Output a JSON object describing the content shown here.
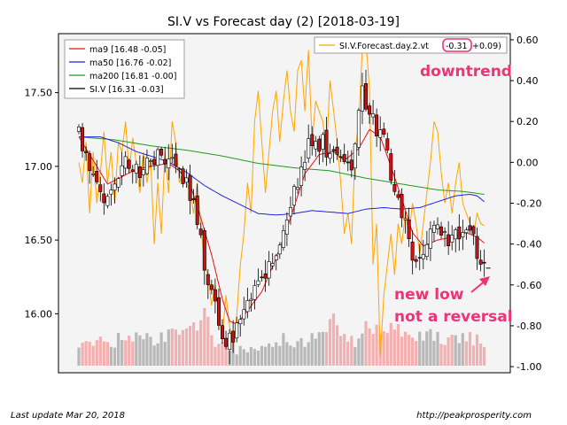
{
  "chart_data": {
    "type": "candlestick",
    "title": "SI.V vs Forecast day (2)  [2018-03-19]",
    "n": 114,
    "left_axis": {
      "ylim": [
        15.6,
        17.9
      ],
      "ticks": [
        16.0,
        16.5,
        17.0,
        17.5
      ],
      "tick_labels": [
        "16.00",
        "16.50",
        "17.00",
        "17.50"
      ]
    },
    "right_axis": {
      "ylim": [
        -1.03,
        0.63
      ],
      "ticks": [
        0.6,
        0.4,
        0.2,
        0.0,
        -0.2,
        -0.4,
        -0.6,
        -0.8,
        -1.0
      ],
      "tick_labels": [
        "0.60",
        "0.40",
        "0.20",
        "0.00",
        "-0.20",
        "-0.40",
        "-0.60",
        "-0.80",
        "-1.00"
      ]
    },
    "legend_left": {
      "position": "top-left",
      "entries": [
        {
          "label": "ma9 [16.48 -0.05]",
          "color": "#ee1111"
        },
        {
          "label": "ma50 [16.76 -0.02]",
          "color": "#2222dd"
        },
        {
          "label": "ma200 [16.81 -0.00]",
          "color": "#229922"
        },
        {
          "label": "SI.V [16.31 -0.03]",
          "color": "#000000"
        }
      ]
    },
    "legend_right": {
      "position": "top-right",
      "label_prefix": "SI.V.Forecast.day.2.vt",
      "label_highlight": "-0.31",
      "label_suffix": "+0.09)",
      "color": "#ffa500"
    },
    "annotations": {
      "downtrend": "downtrend",
      "new_low_1": "new low",
      "new_low_2": "not a reversal",
      "color": "#ee3377"
    },
    "anchors": {
      "close": [
        [
          0,
          17.2
        ],
        [
          5,
          16.85
        ],
        [
          8,
          16.75
        ],
        [
          12,
          17.05
        ],
        [
          15,
          16.95
        ],
        [
          20,
          17.05
        ],
        [
          25,
          17.05
        ],
        [
          28,
          16.95
        ],
        [
          32,
          16.8
        ],
        [
          35,
          16.35
        ],
        [
          38,
          16.05
        ],
        [
          41,
          15.75
        ],
        [
          43,
          15.85
        ],
        [
          47,
          16.1
        ],
        [
          51,
          16.2
        ],
        [
          55,
          16.45
        ],
        [
          60,
          16.85
        ],
        [
          64,
          17.15
        ],
        [
          68,
          17.15
        ],
        [
          72,
          17.05
        ],
        [
          76,
          17.0
        ],
        [
          79,
          17.5
        ],
        [
          82,
          17.3
        ],
        [
          85,
          17.2
        ],
        [
          88,
          16.85
        ],
        [
          91,
          16.6
        ],
        [
          94,
          16.3
        ],
        [
          97,
          16.5
        ],
        [
          100,
          16.6
        ],
        [
          104,
          16.5
        ],
        [
          107,
          16.6
        ],
        [
          110,
          16.5
        ],
        [
          113,
          16.31
        ]
      ],
      "ma9": [
        [
          0,
          17.2
        ],
        [
          5,
          17.0
        ],
        [
          8,
          16.88
        ],
        [
          12,
          16.93
        ],
        [
          16,
          16.98
        ],
        [
          20,
          17.0
        ],
        [
          25,
          17.02
        ],
        [
          28,
          16.97
        ],
        [
          31,
          16.88
        ],
        [
          34,
          16.65
        ],
        [
          37,
          16.4
        ],
        [
          40,
          16.1
        ],
        [
          42,
          15.95
        ],
        [
          44,
          15.93
        ],
        [
          47,
          16.02
        ],
        [
          51,
          16.15
        ],
        [
          55,
          16.38
        ],
        [
          59,
          16.65
        ],
        [
          63,
          16.95
        ],
        [
          67,
          17.08
        ],
        [
          71,
          17.1
        ],
        [
          74,
          17.04
        ],
        [
          78,
          17.12
        ],
        [
          81,
          17.25
        ],
        [
          84,
          17.2
        ],
        [
          87,
          17.0
        ],
        [
          90,
          16.78
        ],
        [
          93,
          16.55
        ],
        [
          96,
          16.46
        ],
        [
          100,
          16.5
        ],
        [
          104,
          16.52
        ],
        [
          108,
          16.55
        ],
        [
          111,
          16.52
        ],
        [
          113,
          16.48
        ]
      ],
      "ma50": [
        [
          0,
          17.2
        ],
        [
          6,
          17.2
        ],
        [
          11,
          17.16
        ],
        [
          16,
          17.1
        ],
        [
          20,
          17.07
        ],
        [
          25,
          17.03
        ],
        [
          30,
          16.96
        ],
        [
          35,
          16.87
        ],
        [
          40,
          16.8
        ],
        [
          45,
          16.74
        ],
        [
          50,
          16.68
        ],
        [
          55,
          16.67
        ],
        [
          60,
          16.68
        ],
        [
          65,
          16.7
        ],
        [
          70,
          16.69
        ],
        [
          75,
          16.68
        ],
        [
          80,
          16.71
        ],
        [
          85,
          16.72
        ],
        [
          90,
          16.71
        ],
        [
          95,
          16.72
        ],
        [
          100,
          16.76
        ],
        [
          105,
          16.8
        ],
        [
          109,
          16.81
        ],
        [
          111,
          16.8
        ],
        [
          113,
          16.76
        ]
      ],
      "ma200": [
        [
          0,
          17.2
        ],
        [
          10,
          17.18
        ],
        [
          20,
          17.14
        ],
        [
          30,
          17.11
        ],
        [
          40,
          17.07
        ],
        [
          50,
          17.02
        ],
        [
          60,
          16.99
        ],
        [
          70,
          16.97
        ],
        [
          80,
          16.92
        ],
        [
          90,
          16.88
        ],
        [
          100,
          16.84
        ],
        [
          107,
          16.83
        ],
        [
          113,
          16.81
        ]
      ],
      "forecast": [
        [
          0,
          0.0
        ],
        [
          1,
          -0.1
        ],
        [
          2,
          0.1
        ],
        [
          3,
          -0.25
        ],
        [
          4,
          0.05
        ],
        [
          5,
          -0.2
        ],
        [
          6,
          -0.05
        ],
        [
          7,
          0.15
        ],
        [
          8,
          -0.1
        ],
        [
          9,
          0.05
        ],
        [
          10,
          -0.2
        ],
        [
          11,
          0.1
        ],
        [
          12,
          0.05
        ],
        [
          13,
          0.2
        ],
        [
          14,
          -0.05
        ],
        [
          15,
          0.12
        ],
        [
          16,
          0.0
        ],
        [
          17,
          -0.15
        ],
        [
          18,
          0.05
        ],
        [
          19,
          -0.1
        ],
        [
          20,
          0.02
        ],
        [
          21,
          -0.4
        ],
        [
          22,
          -0.1
        ],
        [
          23,
          -0.35
        ],
        [
          24,
          0.05
        ],
        [
          25,
          -0.15
        ],
        [
          26,
          0.2
        ],
        [
          27,
          0.1
        ],
        [
          28,
          -0.1
        ],
        [
          29,
          -0.05
        ],
        [
          30,
          -0.1
        ],
        [
          31,
          -0.15
        ],
        [
          32,
          -0.25
        ],
        [
          33,
          -0.1
        ],
        [
          34,
          -0.3
        ],
        [
          35,
          -0.5
        ],
        [
          36,
          -0.55
        ],
        [
          37,
          -0.7
        ],
        [
          38,
          -0.6
        ],
        [
          39,
          -0.75
        ],
        [
          40,
          -0.85
        ],
        [
          41,
          -0.65
        ],
        [
          42,
          -0.8
        ],
        [
          43,
          -0.9
        ],
        [
          44,
          -0.75
        ],
        [
          45,
          -0.5
        ],
        [
          46,
          -0.35
        ],
        [
          47,
          -0.1
        ],
        [
          48,
          -0.25
        ],
        [
          49,
          0.2
        ],
        [
          50,
          0.35
        ],
        [
          51,
          0.1
        ],
        [
          52,
          -0.15
        ],
        [
          53,
          0.05
        ],
        [
          54,
          0.25
        ],
        [
          55,
          0.35
        ],
        [
          56,
          0.1
        ],
        [
          57,
          0.3
        ],
        [
          58,
          0.45
        ],
        [
          59,
          0.25
        ],
        [
          60,
          0.15
        ],
        [
          61,
          0.45
        ],
        [
          62,
          0.5
        ],
        [
          63,
          0.25
        ],
        [
          64,
          0.55
        ],
        [
          65,
          0.1
        ],
        [
          66,
          0.3
        ],
        [
          67,
          0.25
        ],
        [
          68,
          0.2
        ],
        [
          69,
          0.05
        ],
        [
          70,
          0.4
        ],
        [
          71,
          0.25
        ],
        [
          72,
          0.1
        ],
        [
          73,
          -0.1
        ],
        [
          74,
          -0.35
        ],
        [
          75,
          -0.25
        ],
        [
          76,
          -0.4
        ],
        [
          77,
          0.05
        ],
        [
          78,
          0.2
        ],
        [
          79,
          0.55
        ],
        [
          80,
          0.6
        ],
        [
          81,
          0.35
        ],
        [
          82,
          -0.5
        ],
        [
          83,
          -0.3
        ],
        [
          84,
          -0.95
        ],
        [
          85,
          -0.65
        ],
        [
          86,
          -0.5
        ],
        [
          87,
          -0.35
        ],
        [
          88,
          -0.55
        ],
        [
          89,
          -0.3
        ],
        [
          90,
          -0.4
        ],
        [
          91,
          -0.25
        ],
        [
          92,
          -0.35
        ],
        [
          93,
          -0.2
        ],
        [
          94,
          -0.3
        ],
        [
          95,
          -0.45
        ],
        [
          96,
          -0.3
        ],
        [
          97,
          -0.15
        ],
        [
          98,
          0.0
        ],
        [
          99,
          0.2
        ],
        [
          100,
          0.15
        ],
        [
          101,
          -0.05
        ],
        [
          102,
          -0.2
        ],
        [
          103,
          -0.1
        ],
        [
          104,
          -0.25
        ],
        [
          105,
          -0.1
        ],
        [
          106,
          0.0
        ],
        [
          107,
          -0.2
        ],
        [
          108,
          -0.25
        ],
        [
          109,
          -0.3
        ],
        [
          110,
          -0.35
        ],
        [
          111,
          -0.25
        ],
        [
          112,
          -0.3
        ],
        [
          113,
          -0.31
        ]
      ],
      "volume": [
        [
          0,
          0.3
        ],
        [
          3,
          0.25
        ],
        [
          6,
          0.35
        ],
        [
          10,
          0.3
        ],
        [
          14,
          0.4
        ],
        [
          18,
          0.32
        ],
        [
          22,
          0.35
        ],
        [
          26,
          0.4
        ],
        [
          30,
          0.45
        ],
        [
          34,
          0.5
        ],
        [
          35,
          0.8
        ],
        [
          37,
          0.3
        ],
        [
          41,
          0.25
        ],
        [
          45,
          0.2
        ],
        [
          49,
          0.25
        ],
        [
          53,
          0.3
        ],
        [
          57,
          0.35
        ],
        [
          61,
          0.3
        ],
        [
          65,
          0.35
        ],
        [
          69,
          0.45
        ],
        [
          71,
          0.7
        ],
        [
          73,
          0.35
        ],
        [
          77,
          0.3
        ],
        [
          80,
          0.5
        ],
        [
          84,
          0.4
        ],
        [
          88,
          0.5
        ],
        [
          92,
          0.3
        ],
        [
          96,
          0.4
        ],
        [
          100,
          0.35
        ],
        [
          104,
          0.3
        ],
        [
          108,
          0.35
        ],
        [
          113,
          0.3
        ]
      ]
    }
  },
  "footer": {
    "left": "Last update Mar 20, 2018",
    "right": "http://peakprosperity.com"
  }
}
